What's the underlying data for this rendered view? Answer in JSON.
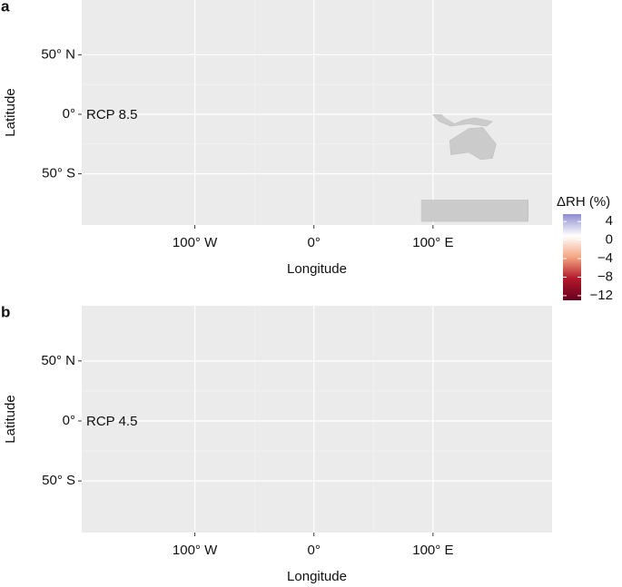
{
  "chart_data": [
    {
      "type": "map",
      "panel_label": "a",
      "annotation": "RCP 8.5",
      "xlabel": "Longitude",
      "ylabel": "Latitude",
      "xlim": [
        -195,
        200
      ],
      "ylim": [
        -93,
        96
      ],
      "xticks": [
        {
          "value": -100,
          "label": "100° W"
        },
        {
          "value": 0,
          "label": "0°"
        },
        {
          "value": 100,
          "label": "100° E"
        }
      ],
      "yticks": [
        {
          "value": -50,
          "label": "50° S"
        },
        {
          "value": 0,
          "label": "0°"
        },
        {
          "value": 50,
          "label": "50° N"
        }
      ],
      "grid": true,
      "colorbar": {
        "title": "ΔRH (%)",
        "lim": [
          -13,
          5.6
        ],
        "ticks": [
          4,
          0,
          {
            "value": -4,
            "label": "−4"
          },
          {
            "value": -8,
            "label": "−8"
          },
          {
            "value": -12,
            "label": "−12"
          }
        ],
        "colors": [
          "#67001f",
          "#b2182b",
          "#f4a582",
          "#ffffff",
          "#8c8cd0"
        ]
      }
    },
    {
      "type": "map",
      "panel_label": "b",
      "annotation": "RCP 4.5",
      "xlabel": "Longitude",
      "ylabel": "Latitude",
      "xlim": [
        -195,
        200
      ],
      "ylim": [
        -93,
        96
      ],
      "xticks": [
        {
          "value": -100,
          "label": "100° W"
        },
        {
          "value": 0,
          "label": "0°"
        },
        {
          "value": 100,
          "label": "100° E"
        }
      ],
      "yticks": [
        {
          "value": -50,
          "label": "50° S"
        },
        {
          "value": 0,
          "label": "0°"
        },
        {
          "value": 50,
          "label": "50° N"
        }
      ],
      "grid": true
    }
  ]
}
